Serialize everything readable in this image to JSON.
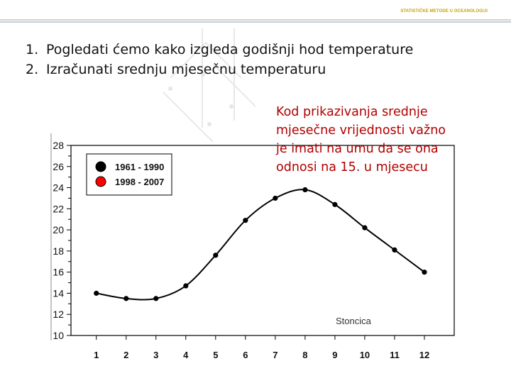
{
  "header": {
    "label": "STATISTIČKE METODE U OCEANOLOGIJI"
  },
  "objectives": [
    {
      "num": "1.",
      "text": "Pogledati ćemo kako izgleda  godišnji hod temperature"
    },
    {
      "num": "2.",
      "text": "Izračunati srednju mjesečnu temperaturu"
    }
  ],
  "note": {
    "lines": [
      "Kod prikazivanja srednje",
      "mjesečne vrijednosti važno",
      "je imati na umu da se ona",
      "odnosi na 15. u mjesecu"
    ],
    "color": "#b00000"
  },
  "colors": {
    "header_accent": "#c8a000",
    "line": "#000000",
    "marker": "#000000",
    "legend_red": "#ff0000"
  },
  "chart_data": {
    "type": "line",
    "title": "",
    "xlabel": "",
    "ylabel": "",
    "x": [
      1,
      2,
      3,
      4,
      5,
      6,
      7,
      8,
      9,
      10,
      11,
      12
    ],
    "xlim": [
      0.15,
      13.0
    ],
    "ylim": [
      10,
      28
    ],
    "yticks": [
      10,
      12,
      14,
      16,
      18,
      20,
      22,
      24,
      26,
      28
    ],
    "grid": false,
    "legend_position": "top-left",
    "legend": [
      {
        "label": "1961 - 1990",
        "color": "#000000"
      },
      {
        "label": "1998 - 2007",
        "color": "#ff0000"
      }
    ],
    "series": [
      {
        "name": "1961 - 1990",
        "values": [
          14.0,
          13.5,
          13.5,
          14.7,
          17.6,
          20.9,
          23.0,
          23.8,
          22.4,
          20.2,
          18.1,
          16.0
        ],
        "color": "#000000"
      }
    ],
    "annotation": "Stoncica"
  }
}
